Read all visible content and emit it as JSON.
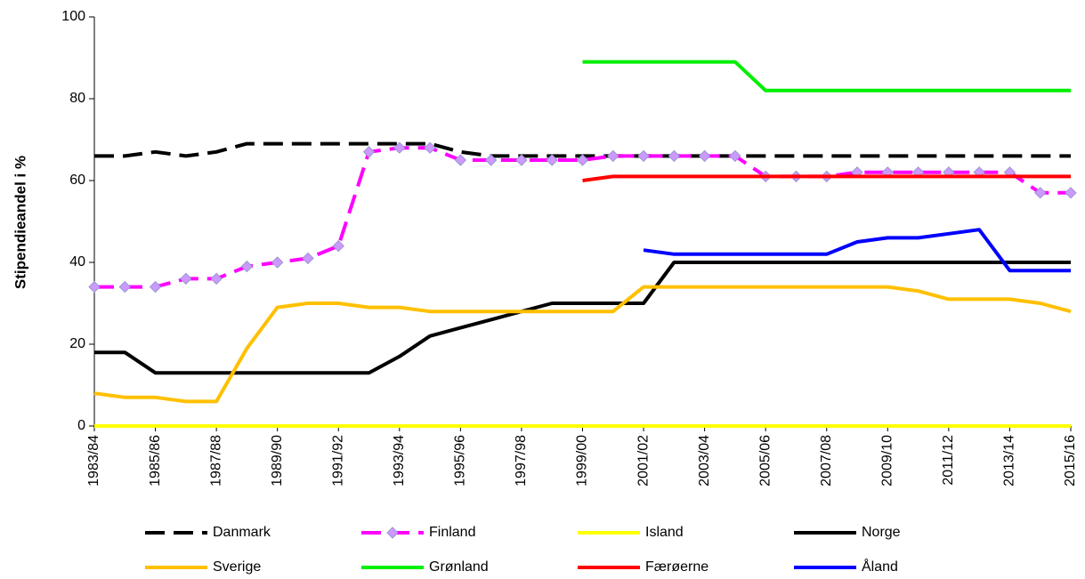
{
  "chart_data": {
    "type": "line",
    "y_label": "Stipendieandel i %",
    "categories": [
      "1983/84",
      null,
      "1985/86",
      null,
      "1987/88",
      null,
      "1989/90",
      null,
      "1991/92",
      null,
      "1993/94",
      null,
      "1995/96",
      null,
      "1997/98",
      null,
      "1999/00",
      null,
      "2001/02",
      null,
      "2003/04",
      null,
      "2005/06",
      null,
      "2007/08",
      null,
      "2009/10",
      null,
      "2011/12",
      null,
      "2013/14",
      null,
      "2015/16"
    ],
    "ylim": [
      0,
      100
    ],
    "yticks": [
      0,
      20,
      40,
      60,
      80,
      100
    ],
    "grid": false,
    "legend": "bottom",
    "series": [
      {
        "name": "Danmark",
        "color": "#000000",
        "dashed": true,
        "values": [
          66,
          66,
          67,
          66,
          67,
          69,
          69,
          69,
          69,
          69,
          69,
          69,
          67,
          66,
          66,
          66,
          66,
          66,
          66,
          66,
          66,
          66,
          66,
          66,
          66,
          66,
          66,
          66,
          66,
          66,
          66,
          66,
          66
        ]
      },
      {
        "name": "Finland",
        "color": "#ff00ff",
        "dashed": true,
        "marker": "diamond",
        "marker_color": "#cc99ff",
        "values": [
          34,
          34,
          34,
          36,
          36,
          39,
          40,
          41,
          44,
          67,
          68,
          68,
          65,
          65,
          65,
          65,
          65,
          66,
          66,
          66,
          66,
          66,
          61,
          61,
          61,
          62,
          62,
          62,
          62,
          62,
          62,
          57,
          57
        ]
      },
      {
        "name": "Island",
        "color": "#ffff00",
        "values": [
          0,
          0,
          0,
          0,
          0,
          0,
          0,
          0,
          0,
          0,
          0,
          0,
          0,
          0,
          0,
          0,
          0,
          0,
          0,
          0,
          0,
          0,
          0,
          0,
          0,
          0,
          0,
          0,
          0,
          0,
          0,
          0,
          0
        ]
      },
      {
        "name": "Norge",
        "color": "#000000",
        "values": [
          18,
          18,
          13,
          13,
          13,
          13,
          13,
          13,
          13,
          13,
          17,
          22,
          24,
          26,
          28,
          30,
          30,
          30,
          30,
          40,
          40,
          40,
          40,
          40,
          40,
          40,
          40,
          40,
          40,
          40,
          40,
          40,
          40
        ]
      },
      {
        "name": "Sverige",
        "color": "#ffc000",
        "values": [
          8,
          7,
          7,
          6,
          6,
          19,
          29,
          30,
          30,
          29,
          29,
          28,
          28,
          28,
          28,
          28,
          28,
          28,
          34,
          34,
          34,
          34,
          34,
          34,
          34,
          34,
          34,
          33,
          31,
          31,
          31,
          30,
          28
        ]
      },
      {
        "name": "Grønland",
        "color": "#00ee00",
        "values": [
          null,
          null,
          null,
          null,
          null,
          null,
          null,
          null,
          null,
          null,
          null,
          null,
          null,
          null,
          null,
          null,
          89,
          89,
          89,
          89,
          89,
          89,
          82,
          82,
          82,
          82,
          82,
          82,
          82,
          82,
          82,
          82,
          82
        ]
      },
      {
        "name": "Færøerne",
        "color": "#ff0000",
        "values": [
          null,
          null,
          null,
          null,
          null,
          null,
          null,
          null,
          null,
          null,
          null,
          null,
          null,
          null,
          null,
          null,
          60,
          61,
          61,
          61,
          61,
          61,
          61,
          61,
          61,
          61,
          61,
          61,
          61,
          61,
          61,
          61,
          61
        ]
      },
      {
        "name": "Åland",
        "color": "#0000ff",
        "values": [
          null,
          null,
          null,
          null,
          null,
          null,
          null,
          null,
          null,
          null,
          null,
          null,
          null,
          null,
          null,
          null,
          null,
          null,
          43,
          42,
          42,
          42,
          42,
          42,
          42,
          45,
          46,
          46,
          47,
          48,
          38,
          38,
          38
        ]
      }
    ]
  }
}
